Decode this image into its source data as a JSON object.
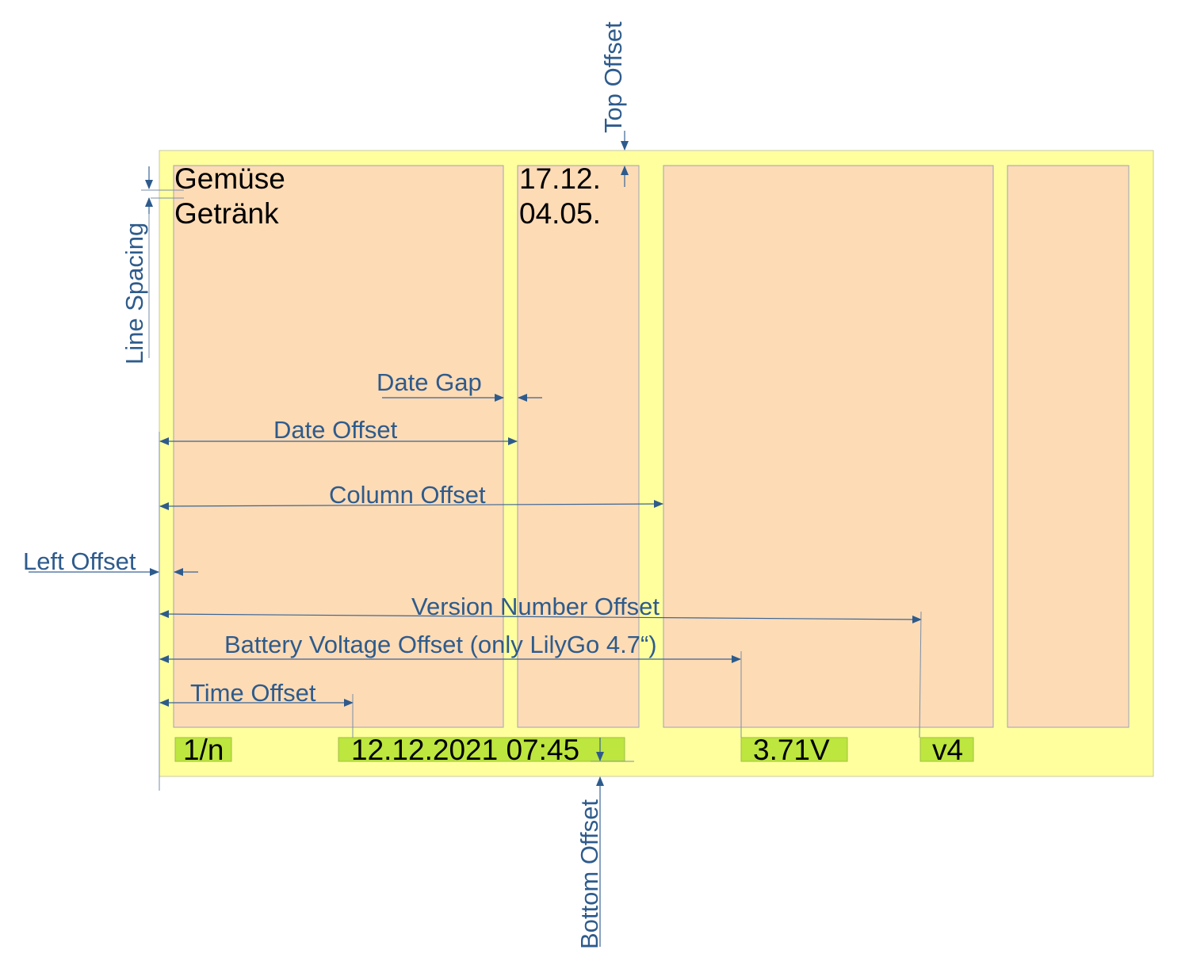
{
  "display": {
    "categories": [
      "Gemüse",
      "Getränk"
    ],
    "dates": [
      "17.12.",
      "04.05."
    ],
    "status_bar": {
      "page": "1/n",
      "datetime": "12.12.2021 07:45",
      "battery": "3.71V",
      "version": "v4"
    }
  },
  "annotations": {
    "top_offset": "Top Offset",
    "line_spacing": "Line Spacing",
    "date_gap": "Date Gap",
    "date_offset": "Date Offset",
    "column_offset": "Column Offset",
    "left_offset": "Left Offset",
    "version_number_offset": "Version Number Offset",
    "battery_voltage_offset": "Battery Voltage Offset (only LilyGo 4.7“)",
    "time_offset": "Time Offset",
    "bottom_offset": "Bottom Offset"
  },
  "colors": {
    "display_background": "#ffff9e",
    "column_fill": "#fddbb5",
    "status_fill": "#bde63e",
    "annotation": "#2e5b8c"
  }
}
